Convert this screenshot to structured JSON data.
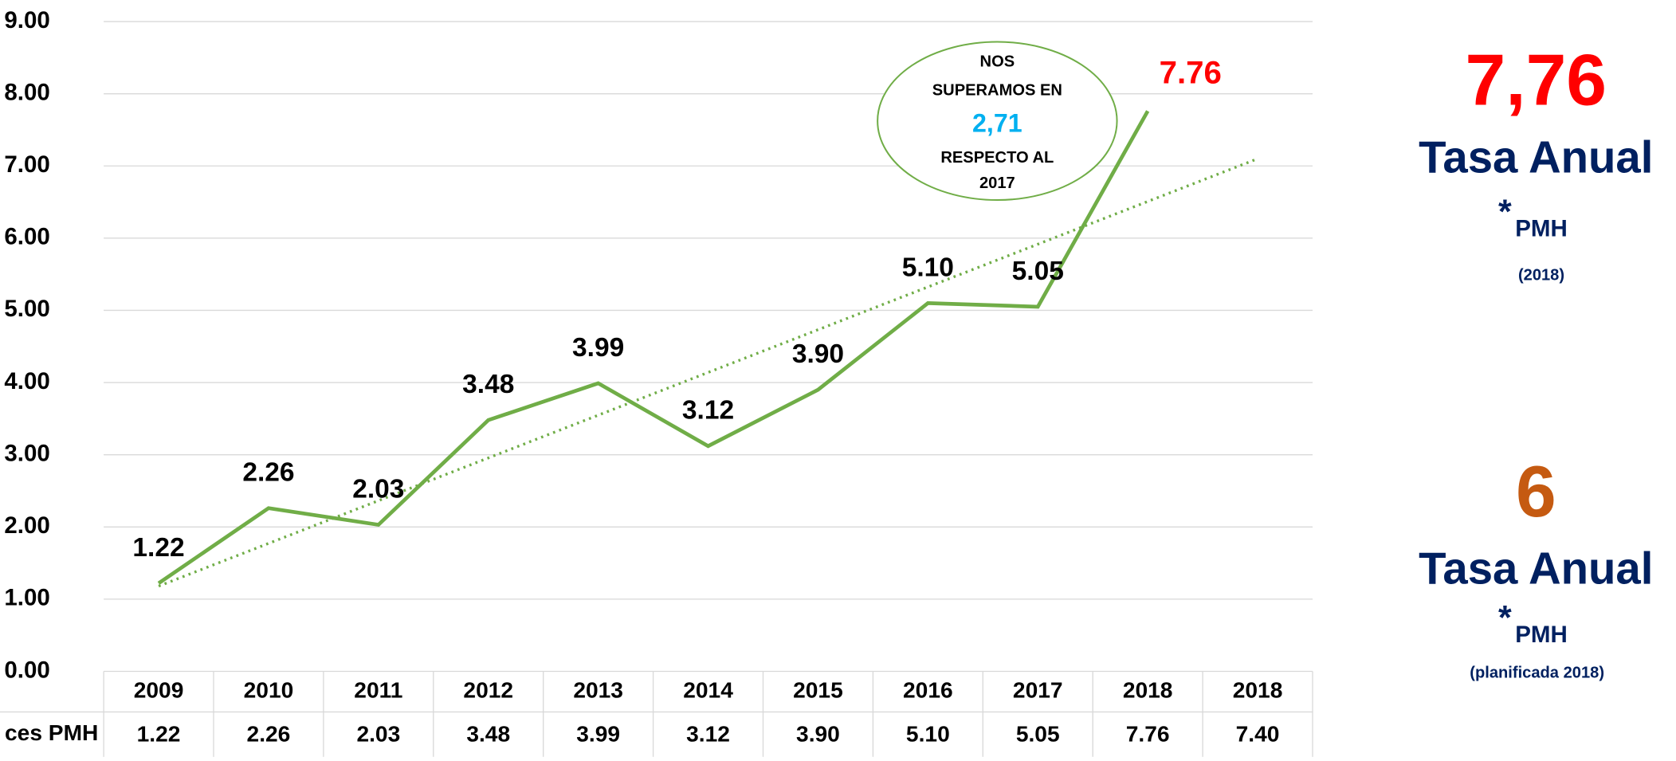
{
  "chart_data": {
    "type": "line",
    "categories": [
      "2009",
      "2010",
      "2011",
      "2012",
      "2013",
      "2014",
      "2015",
      "2016",
      "2017",
      "2018",
      "2018"
    ],
    "series": [
      {
        "color": "#70ad47",
        "values": [
          1.22,
          2.26,
          2.03,
          3.48,
          3.99,
          3.12,
          3.9,
          5.1,
          5.05,
          7.76,
          null
        ],
        "value_labels": [
          "1.22",
          "2.26",
          "2.03",
          "3.48",
          "3.99",
          "3.12",
          "3.90",
          "5.10",
          "5.05",
          "7.76",
          null
        ],
        "label_colors": [
          "#000000",
          "#000000",
          "#000000",
          "#000000",
          "#000000",
          "#000000",
          "#000000",
          "#000000",
          "#000000",
          "#ff0000",
          null
        ]
      }
    ],
    "trendline": {
      "color": "#70ad47",
      "values": [
        1.18,
        7.1
      ]
    },
    "ylim": [
      0,
      9
    ],
    "yticks": [
      {
        "value": 0,
        "label": "0.00"
      },
      {
        "value": 1,
        "label": "1.00"
      },
      {
        "value": 2,
        "label": "2.00"
      },
      {
        "value": 3,
        "label": "3.00"
      },
      {
        "value": 4,
        "label": "4.00"
      },
      {
        "value": 5,
        "label": "5.00"
      },
      {
        "value": 6,
        "label": "6.00"
      },
      {
        "value": 7,
        "label": "7.00"
      },
      {
        "value": 8,
        "label": "8.00"
      },
      {
        "value": 9,
        "label": "9.00"
      }
    ],
    "grid": true,
    "table": {
      "row_label": "ces PMH",
      "cells": [
        "1.22",
        "2.26",
        "2.03",
        "3.48",
        "3.99",
        "3.12",
        "3.90",
        "5.10",
        "5.05",
        "7.76",
        "7.40"
      ]
    },
    "callout": {
      "lines": [
        "NOS",
        "SUPERAMOS EN",
        "2,71",
        "RESPECTO AL",
        "2017"
      ]
    },
    "side": {
      "top": {
        "value": "7,76",
        "title": "Tasa Anual",
        "star": "*",
        "unit": "PMH",
        "note": "(2018)"
      },
      "bottom": {
        "value": "6",
        "title": "Tasa Anual",
        "star": "*",
        "unit": "PMH",
        "note": "(planificada 2018)"
      }
    }
  }
}
